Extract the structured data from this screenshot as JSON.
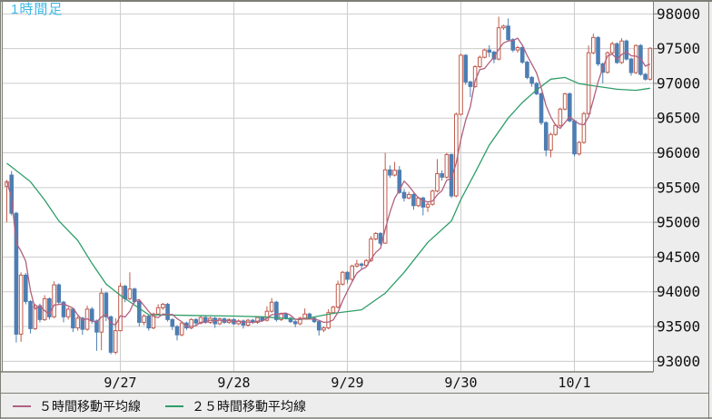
{
  "title": "1時間足",
  "legend": {
    "ma5_label": "５時間移動平均線",
    "ma25_label": "２５時間移動平均線"
  },
  "colors": {
    "plot_bg": "#ffffff",
    "band_bg": "#ededed",
    "grid": "#cccccc",
    "frame": "#7d7f77",
    "text": "#111111",
    "title": "#3fb8e8",
    "up": "#c05a4a",
    "down": "#4d7eb3",
    "ma5": "#b0607e",
    "ma25": "#2f9e68"
  },
  "chart_data": {
    "type": "candlestick",
    "title": "1時間足",
    "candles_per_day": 24,
    "y_axis": {
      "min": 93000,
      "max": 98000,
      "step": 500,
      "position": "right",
      "ticks": [
        98000,
        97500,
        97000,
        96500,
        96000,
        95500,
        95000,
        94500,
        94000,
        93500,
        93000
      ]
    },
    "x_axis": {
      "labels": [
        {
          "text": "9/27",
          "index": 24
        },
        {
          "text": "9/28",
          "index": 48
        },
        {
          "text": "9/29",
          "index": 72
        },
        {
          "text": "9/30",
          "index": 96
        },
        {
          "text": "10/1",
          "index": 120
        }
      ]
    },
    "candles": [
      [
        95520,
        95610,
        95000,
        95585
      ],
      [
        95680,
        95740,
        95100,
        95130
      ],
      [
        95130,
        95150,
        93270,
        93390
      ],
      [
        93390,
        94280,
        93280,
        94240
      ],
      [
        94240,
        94270,
        93820,
        93860
      ],
      [
        93860,
        93880,
        93400,
        93470
      ],
      [
        93470,
        93830,
        93450,
        93800
      ],
      [
        93800,
        93830,
        93560,
        93600
      ],
      [
        93600,
        93950,
        93580,
        93900
      ],
      [
        93900,
        93920,
        93600,
        93640
      ],
      [
        93640,
        94150,
        93620,
        94100
      ],
      [
        94100,
        94120,
        93820,
        93850
      ],
      [
        93850,
        93870,
        93560,
        93640
      ],
      [
        93640,
        93780,
        93600,
        93750
      ],
      [
        93750,
        93770,
        93420,
        93480
      ],
      [
        93480,
        93650,
        93440,
        93620
      ],
      [
        93620,
        93640,
        93380,
        93460
      ],
      [
        93460,
        93800,
        93440,
        93750
      ],
      [
        93750,
        93780,
        93540,
        93580
      ],
      [
        93580,
        93600,
        93150,
        93420
      ],
      [
        93420,
        94050,
        93160,
        93980
      ],
      [
        93980,
        94000,
        93580,
        93640
      ],
      [
        93640,
        93660,
        93100,
        93130
      ],
      [
        93130,
        93620,
        93100,
        93440
      ],
      [
        93440,
        94130,
        93430,
        94080
      ],
      [
        94080,
        94100,
        93850,
        93900
      ],
      [
        93900,
        94280,
        93880,
        94040
      ],
      [
        94040,
        94060,
        93830,
        93860
      ],
      [
        93860,
        93880,
        93500,
        93560
      ],
      [
        93560,
        93680,
        93520,
        93650
      ],
      [
        93650,
        93670,
        93440,
        93480
      ],
      [
        93480,
        93700,
        93460,
        93680
      ],
      [
        93680,
        93820,
        93660,
        93770
      ],
      [
        93770,
        93840,
        93740,
        93820
      ],
      [
        93820,
        93840,
        93570,
        93600
      ],
      [
        93600,
        93620,
        93450,
        93500
      ],
      [
        93500,
        93520,
        93300,
        93380
      ],
      [
        93380,
        93570,
        93360,
        93550
      ],
      [
        93550,
        93570,
        93450,
        93480
      ],
      [
        93480,
        93620,
        93460,
        93600
      ],
      [
        93600,
        93620,
        93520,
        93550
      ],
      [
        93550,
        93650,
        93530,
        93630
      ],
      [
        93630,
        93650,
        93540,
        93560
      ],
      [
        93560,
        93640,
        93540,
        93620
      ],
      [
        93620,
        93640,
        93480,
        93540
      ],
      [
        93540,
        93630,
        93520,
        93610
      ],
      [
        93610,
        93630,
        93540,
        93560
      ],
      [
        93560,
        93620,
        93540,
        93600
      ],
      [
        93600,
        93620,
        93520,
        93540
      ],
      [
        93540,
        93600,
        93520,
        93580
      ],
      [
        93580,
        93600,
        93470,
        93520
      ],
      [
        93520,
        93610,
        93500,
        93590
      ],
      [
        93590,
        93610,
        93540,
        93560
      ],
      [
        93560,
        93650,
        93540,
        93630
      ],
      [
        93630,
        93650,
        93570,
        93590
      ],
      [
        93590,
        93790,
        93570,
        93720
      ],
      [
        93720,
        93910,
        93700,
        93850
      ],
      [
        93850,
        93870,
        93570,
        93600
      ],
      [
        93600,
        93700,
        93580,
        93680
      ],
      [
        93680,
        93700,
        93600,
        93620
      ],
      [
        93620,
        93640,
        93550,
        93570
      ],
      [
        93570,
        93590,
        93490,
        93540
      ],
      [
        93540,
        93640,
        93520,
        93620
      ],
      [
        93620,
        93760,
        93600,
        93680
      ],
      [
        93680,
        93700,
        93600,
        93620
      ],
      [
        93620,
        93640,
        93550,
        93570
      ],
      [
        93570,
        93590,
        93370,
        93450
      ],
      [
        93450,
        93500,
        93420,
        93480
      ],
      [
        93480,
        93750,
        93460,
        93700
      ],
      [
        93700,
        93800,
        93680,
        93780
      ],
      [
        93780,
        94160,
        93760,
        94110
      ],
      [
        94110,
        94300,
        94090,
        94280
      ],
      [
        94280,
        94300,
        94120,
        94180
      ],
      [
        94180,
        94390,
        94160,
        94370
      ],
      [
        94370,
        94460,
        94350,
        94400
      ],
      [
        94400,
        94420,
        94330,
        94380
      ],
      [
        94380,
        94470,
        94360,
        94450
      ],
      [
        94450,
        94800,
        94430,
        94760
      ],
      [
        94760,
        94860,
        94740,
        94840
      ],
      [
        94840,
        94860,
        94670,
        94700
      ],
      [
        94700,
        96000,
        94690,
        95755
      ],
      [
        95755,
        95820,
        95640,
        95680
      ],
      [
        95680,
        95870,
        95660,
        95750
      ],
      [
        95750,
        95810,
        95410,
        95430
      ],
      [
        95430,
        95480,
        95300,
        95350
      ],
      [
        95350,
        95440,
        95330,
        95400
      ],
      [
        95400,
        95420,
        95180,
        95240
      ],
      [
        95240,
        95370,
        95220,
        95350
      ],
      [
        95350,
        95370,
        95100,
        95220
      ],
      [
        95220,
        95290,
        95150,
        95260
      ],
      [
        95260,
        95470,
        95240,
        95450
      ],
      [
        95450,
        95910,
        95430,
        95700
      ],
      [
        95700,
        95750,
        95600,
        95650
      ],
      [
        95650,
        96000,
        95630,
        95975
      ],
      [
        95975,
        95990,
        95350,
        95380
      ],
      [
        95380,
        96580,
        95360,
        96555
      ],
      [
        96555,
        97425,
        96540,
        97405
      ],
      [
        97405,
        97420,
        96980,
        97020
      ],
      [
        97020,
        97040,
        96800,
        96955
      ],
      [
        96955,
        97260,
        96940,
        97240
      ],
      [
        97240,
        97400,
        97220,
        97375
      ],
      [
        97375,
        97500,
        97360,
        97480
      ],
      [
        97480,
        97550,
        97380,
        97450
      ],
      [
        97450,
        97470,
        97290,
        97350
      ],
      [
        97350,
        97960,
        97330,
        97800
      ],
      [
        97800,
        97845,
        97770,
        97825
      ],
      [
        97825,
        97935,
        97610,
        97630
      ],
      [
        97630,
        97650,
        97450,
        97480
      ],
      [
        97480,
        97540,
        97440,
        97515
      ],
      [
        97515,
        97535,
        97280,
        97305
      ],
      [
        97305,
        97325,
        97060,
        97085
      ],
      [
        97085,
        97105,
        96950,
        97000
      ],
      [
        97000,
        97020,
        96830,
        96850
      ],
      [
        96850,
        96870,
        96400,
        96435
      ],
      [
        96435,
        96455,
        95950,
        96040
      ],
      [
        96040,
        96290,
        95935,
        96265
      ],
      [
        96265,
        96420,
        96245,
        96395
      ],
      [
        96395,
        96650,
        96375,
        96630
      ],
      [
        96630,
        96865,
        96610,
        96850
      ],
      [
        96850,
        96870,
        96440,
        96460
      ],
      [
        96460,
        96480,
        95950,
        95985
      ],
      [
        95985,
        96170,
        95960,
        96150
      ],
      [
        96150,
        96590,
        96130,
        96565
      ],
      [
        96565,
        97545,
        96545,
        97440
      ],
      [
        97440,
        97715,
        97420,
        97660
      ],
      [
        97660,
        97680,
        97250,
        97280
      ],
      [
        97280,
        97300,
        97000,
        97160
      ],
      [
        97160,
        97460,
        97140,
        97440
      ],
      [
        97440,
        97600,
        97420,
        97570
      ],
      [
        97570,
        97590,
        97280,
        97300
      ],
      [
        97300,
        97650,
        97280,
        97610
      ],
      [
        97610,
        97630,
        97330,
        97350
      ],
      [
        97350,
        97370,
        97110,
        97155
      ],
      [
        97155,
        97560,
        97135,
        97545
      ],
      [
        97545,
        97565,
        97110,
        97130
      ],
      [
        97130,
        97150,
        97040,
        97060
      ],
      [
        97060,
        97520,
        97040,
        97505
      ]
    ],
    "series": [
      {
        "name": "５時間移動平均線",
        "type": "sma",
        "period": 5,
        "color_key": "ma5",
        "source": "close"
      },
      {
        "name": "２５時間移動平均線",
        "type": "sma",
        "period": 25,
        "color_key": "ma25",
        "points": [
          [
            0,
            95850
          ],
          [
            5,
            95585
          ],
          [
            8,
            95320
          ],
          [
            11,
            95020
          ],
          [
            15,
            94740
          ],
          [
            18,
            94410
          ],
          [
            21,
            94110
          ],
          [
            24,
            93950
          ],
          [
            30,
            93670
          ],
          [
            39,
            93660
          ],
          [
            48,
            93650
          ],
          [
            54,
            93640
          ],
          [
            62,
            93600
          ],
          [
            69,
            93690
          ],
          [
            75,
            93740
          ],
          [
            80,
            93980
          ],
          [
            84,
            94280
          ],
          [
            89,
            94710
          ],
          [
            94,
            95020
          ],
          [
            96,
            95330
          ],
          [
            99,
            95715
          ],
          [
            102,
            96110
          ],
          [
            106,
            96500
          ],
          [
            109,
            96725
          ],
          [
            112,
            96905
          ],
          [
            115,
            97060
          ],
          [
            118,
            97085
          ],
          [
            121,
            96995
          ],
          [
            125,
            96955
          ],
          [
            129,
            96915
          ],
          [
            133,
            96900
          ],
          [
            136,
            96930
          ]
        ]
      }
    ]
  }
}
